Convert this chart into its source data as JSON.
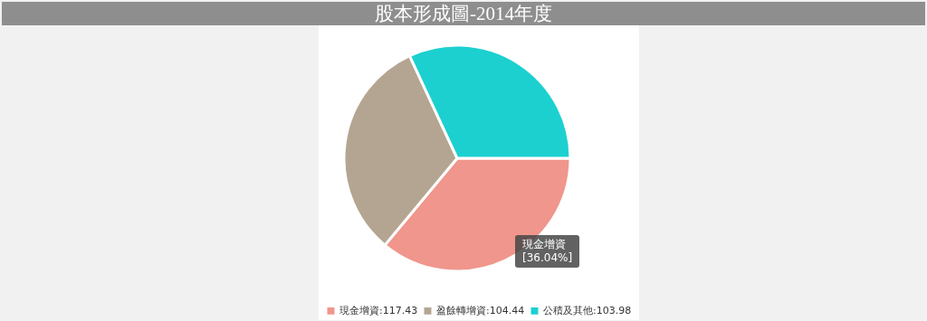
{
  "chart_data": {
    "type": "pie",
    "title": "股本形成圖-2014年度",
    "categories": [
      "現金增資:117.43",
      "盈餘轉增資:104.44",
      "公積及其他:103.98"
    ],
    "values": [
      36.04,
      32.05,
      31.91
    ],
    "colors": [
      "#f0968c",
      "#b4a592",
      "#1cd0d0"
    ],
    "legend": "bottom",
    "annotations": [
      "現金增資\n[36.04%]"
    ]
  }
}
